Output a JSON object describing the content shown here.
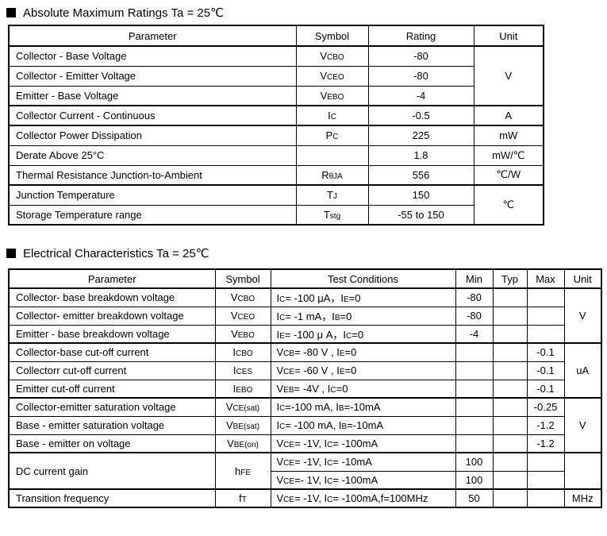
{
  "abs_max": {
    "title": "Absolute Maximum Ratings Ta = 25℃",
    "headers": {
      "parameter": "Parameter",
      "symbol": "Symbol",
      "rating": "Rating",
      "unit": "Unit"
    },
    "rows": [
      {
        "parameter": "Collector - Base Voltage",
        "symbol": "V{CBO}",
        "rating": "-80",
        "unit": "V"
      },
      {
        "parameter": "Collector - Emitter Voltage",
        "symbol": "V{CEO}",
        "rating": "-80"
      },
      {
        "parameter": "Emitter - Base Voltage",
        "symbol": "V{EBO}",
        "rating": "-4"
      },
      {
        "parameter": "Collector Current  - Continuous",
        "symbol": "I{C}",
        "rating": "-0.5",
        "unit": "A"
      },
      {
        "parameter": "Collector Power Dissipation",
        "symbol": "P{C}",
        "rating": "225",
        "unit": "mW"
      },
      {
        "parameter": "Derate Above 25°C",
        "symbol": "",
        "rating": "1.8",
        "unit": "mW/℃"
      },
      {
        "parameter": "Thermal Resistance Junction-to-Ambient",
        "symbol": "R{θJA}",
        "rating": "556",
        "unit": "℃/W"
      },
      {
        "parameter": "Junction Temperature",
        "symbol": "T{J}",
        "rating": "150",
        "unit": "℃"
      },
      {
        "parameter": "Storage Temperature range",
        "symbol": "T{stg}",
        "rating": "-55 to 150"
      }
    ]
  },
  "elec": {
    "title": "Electrical Characteristics Ta = 25℃",
    "headers": {
      "parameter": "Parameter",
      "symbol": "Symbol",
      "conditions": "Test Conditions",
      "min": "Min",
      "typ": "Typ",
      "max": "Max",
      "unit": "Unit"
    },
    "rows": [
      {
        "parameter": "Collector- base breakdown voltage",
        "symbol": "V{CBO}",
        "conditions": "I{C}= -100 μA，I{E}=0",
        "min": "-80",
        "typ": "",
        "max": "",
        "unit": "V"
      },
      {
        "parameter": "Collector- emitter breakdown voltage",
        "symbol": "V{CEO}",
        "conditions": "I{C}= -1 mA，I{B}=0",
        "min": "-80",
        "typ": "",
        "max": ""
      },
      {
        "parameter": "Emitter - base breakdown voltage",
        "symbol": "V{EBO}",
        "conditions": "I{E}= -100 μ A，I{C}=0",
        "min": "-4",
        "typ": "",
        "max": ""
      },
      {
        "parameter": "Collector-base cut-off current",
        "symbol": "I{CBO}",
        "conditions": "V{CB}= -80 V , I{E}=0",
        "min": "",
        "typ": "",
        "max": "-0.1",
        "unit": "uA"
      },
      {
        "parameter": "Collectorr cut-off current",
        "symbol": "I{CES}",
        "conditions": "V{CE}= -60 V , I{E}=0",
        "min": "",
        "typ": "",
        "max": "-0.1"
      },
      {
        "parameter": "Emitter cut-off current",
        "symbol": "I{EBO}",
        "conditions": "V{EB}= -4V , I{C}=0",
        "min": "",
        "typ": "",
        "max": "-0.1"
      },
      {
        "parameter": "Collector-emitter saturation voltage",
        "symbol": "V{CE(sat)}",
        "conditions": "I{C}=-100 mA, I{B}=-10mA",
        "min": "",
        "typ": "",
        "max": "-0.25",
        "unit": "V"
      },
      {
        "parameter": "Base - emitter saturation voltage",
        "symbol": "V{BE(sat)}",
        "conditions": "I{C}= -100 mA, I{B}=-10mA",
        "min": "",
        "typ": "",
        "max": "-1.2"
      },
      {
        "parameter": "Base - emitter on voltage",
        "symbol": "V{BE(on)}",
        "conditions": "V{CE}= -1V, I{C}= -100mA",
        "min": "",
        "typ": "",
        "max": "-1.2"
      },
      {
        "parameter": "DC current gain",
        "symbol": "h{FE}",
        "conditions": "V{CE}= -1V, I{C}= -10mA",
        "min": "100",
        "typ": "",
        "max": "",
        "unit": ""
      },
      {
        "conditions": "V{CE}=- 1V, I{C}= -100mA",
        "min": "100",
        "typ": "",
        "max": ""
      },
      {
        "parameter": "Transition frequency",
        "symbol": "f{T}",
        "conditions": "V{CE}= -1V, I{C}= -100mA,f=100MHz",
        "min": "50",
        "typ": "",
        "max": "",
        "unit": "MHz"
      }
    ]
  }
}
